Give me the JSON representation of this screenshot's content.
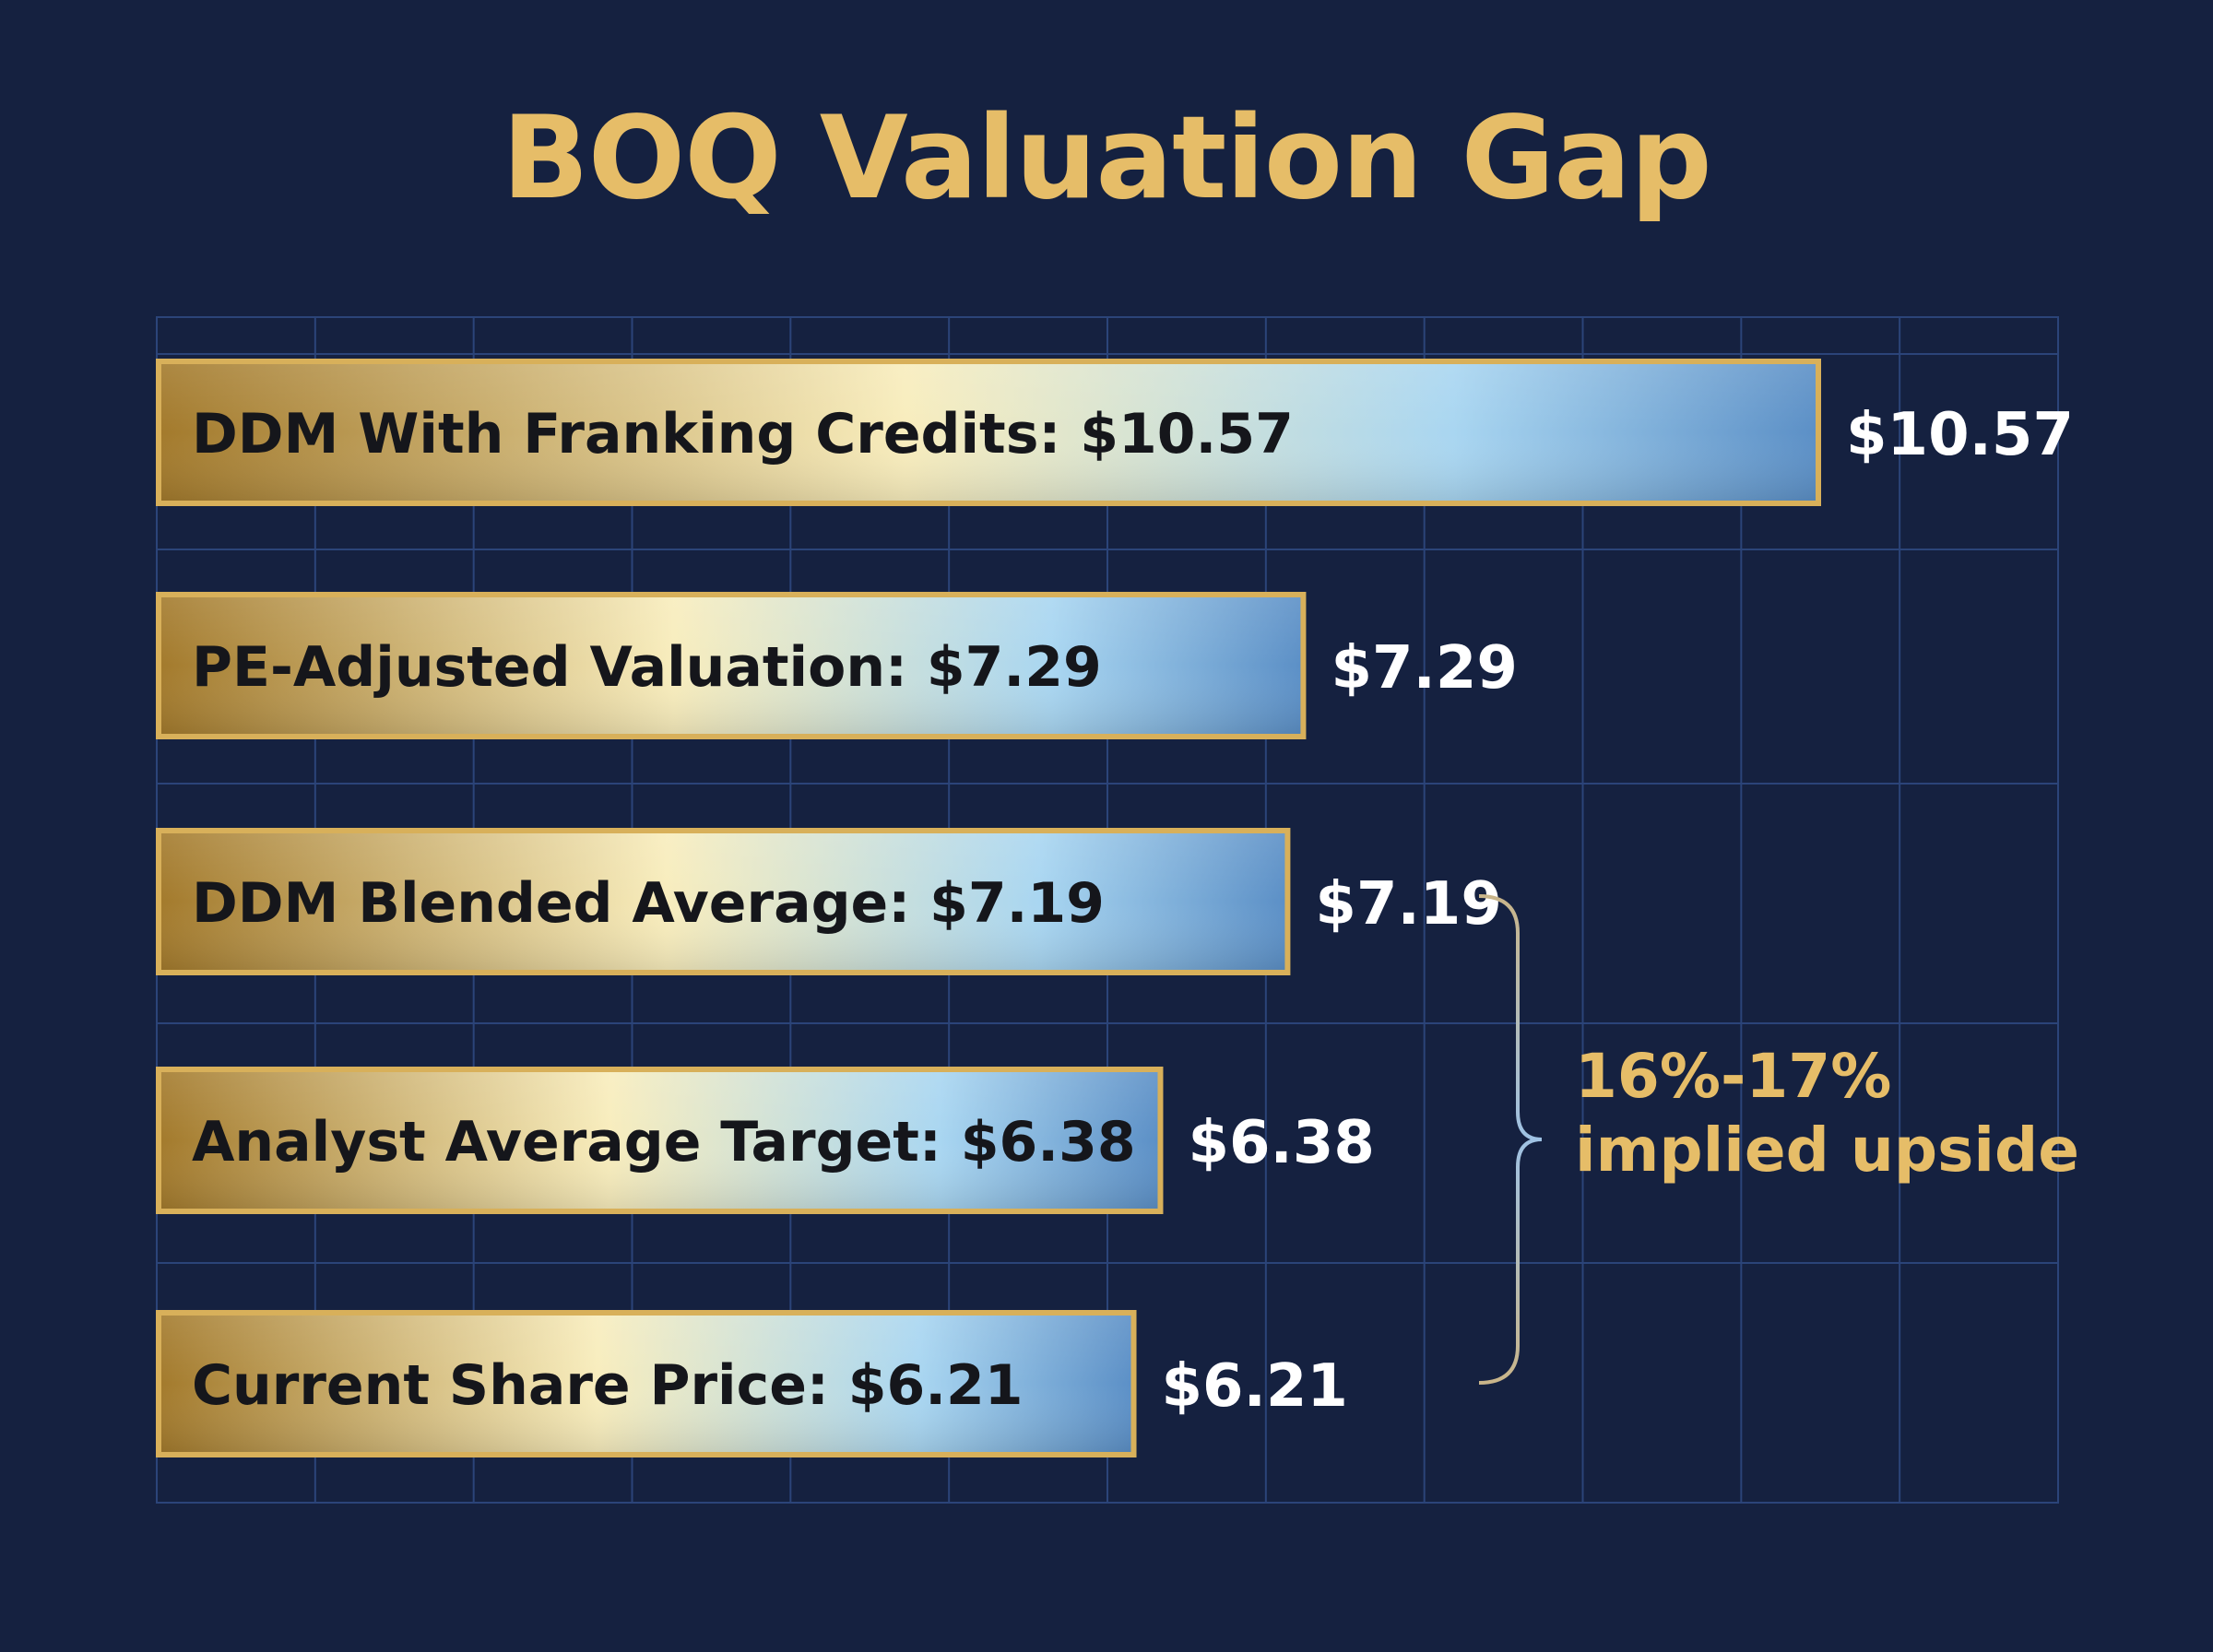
{
  "colors": {
    "background": "#152140",
    "title": "#e6bd68",
    "grid": "#2b4479",
    "bar_gold_dark": "#a37a2c",
    "bar_gold_light": "#f8edbd",
    "bar_blue_light": "#a9d6f1",
    "bar_blue_dark": "#5b8fc6",
    "bar_border": "#d8b05a",
    "label_text": "#15161b",
    "value_text": "#ffffff",
    "annotation": "#e6bd68",
    "bracket": "#b8b0a0"
  },
  "chart_data": {
    "type": "bar",
    "orientation": "horizontal",
    "title": "BOQ Valuation Gap",
    "xlabel": "",
    "ylabel": "",
    "xlim": [
      0,
      12
    ],
    "grid": true,
    "legend": "none",
    "categories": [
      "DDM With Franking Credits",
      "PE-Adjusted Valuation",
      "DDM Blended Average",
      "Analyst Average Target",
      "Current Share Price"
    ],
    "bar_labels": [
      "DDM With Franking Credits: $10.57",
      "PE-Adjusted Valuation: $7.29",
      "DDM Blended Average: $7.19",
      "Analyst Average Target: $6.38",
      "Current Share Price: $6.21"
    ],
    "values": [
      10.57,
      7.29,
      7.19,
      6.38,
      6.21
    ],
    "value_labels": [
      "$10.57",
      "$7.29",
      "$7.19",
      "$6.38",
      "$6.21"
    ],
    "annotation": {
      "text_lines": [
        "16%-17%",
        "implied upside"
      ],
      "bracket_from_category": "DDM Blended Average",
      "bracket_to_category": "Current Share Price"
    }
  }
}
